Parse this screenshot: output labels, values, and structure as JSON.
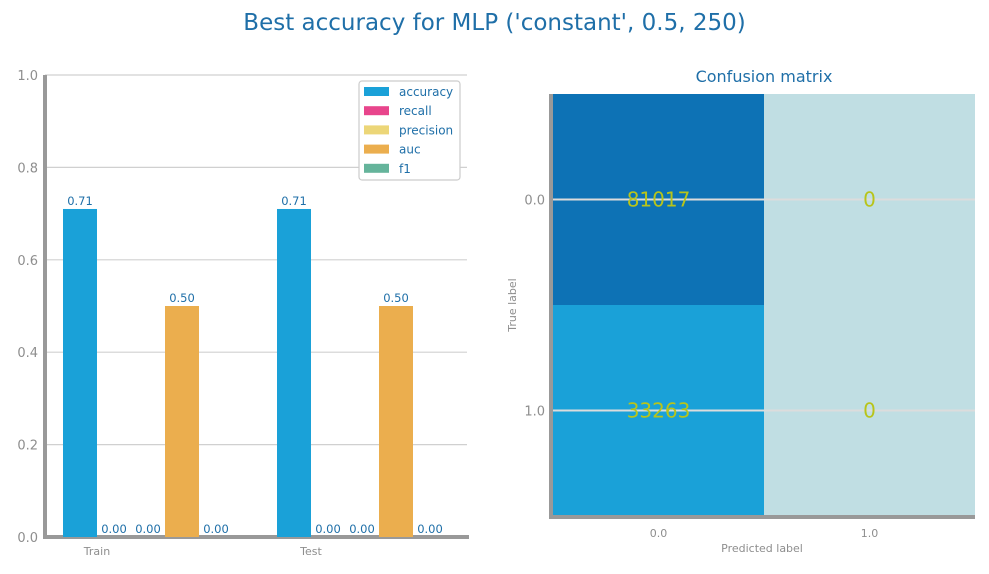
{
  "title": "Best accuracy for MLP ('constant', 0.5, 250)",
  "chart_data": [
    {
      "type": "bar",
      "categories": [
        "Train",
        "Test"
      ],
      "series": [
        {
          "name": "accuracy",
          "color": "#1aa1d8",
          "values": [
            0.71,
            0.71
          ],
          "labels": [
            "0.71",
            "0.71"
          ]
        },
        {
          "name": "recall",
          "color": "#e8458c",
          "values": [
            0.0,
            0.0
          ],
          "labels": [
            "0.00",
            "0.00"
          ]
        },
        {
          "name": "precision",
          "color": "#ecd678",
          "values": [
            0.0,
            0.0
          ],
          "labels": [
            "0.00",
            "0.00"
          ]
        },
        {
          "name": "auc",
          "color": "#ebae4e",
          "values": [
            0.5,
            0.5
          ],
          "labels": [
            "0.50",
            "0.50"
          ]
        },
        {
          "name": "f1",
          "color": "#65b49b",
          "values": [
            0.0,
            0.0
          ],
          "labels": [
            "0.00",
            "0.00"
          ]
        }
      ],
      "ylim": [
        0,
        1.0
      ],
      "yticks": [
        "0.0",
        "0.2",
        "0.4",
        "0.6",
        "0.8",
        "1.0"
      ],
      "grid": true,
      "legend_position": "top-right"
    },
    {
      "type": "heatmap",
      "title": "Confusion matrix",
      "xlabel": "Predicted label",
      "ylabel": "True label",
      "x_categories": [
        "0.0",
        "1.0"
      ],
      "y_categories": [
        "0.0",
        "1.0"
      ],
      "values": [
        [
          81017,
          0
        ],
        [
          33263,
          0
        ]
      ],
      "cell_labels": [
        [
          "81017",
          "0"
        ],
        [
          "33263",
          "0"
        ]
      ],
      "cell_colors": [
        [
          "#0d72b5",
          "#c0dee3"
        ],
        [
          "#1aa1d8",
          "#c0dee3"
        ]
      ]
    }
  ]
}
